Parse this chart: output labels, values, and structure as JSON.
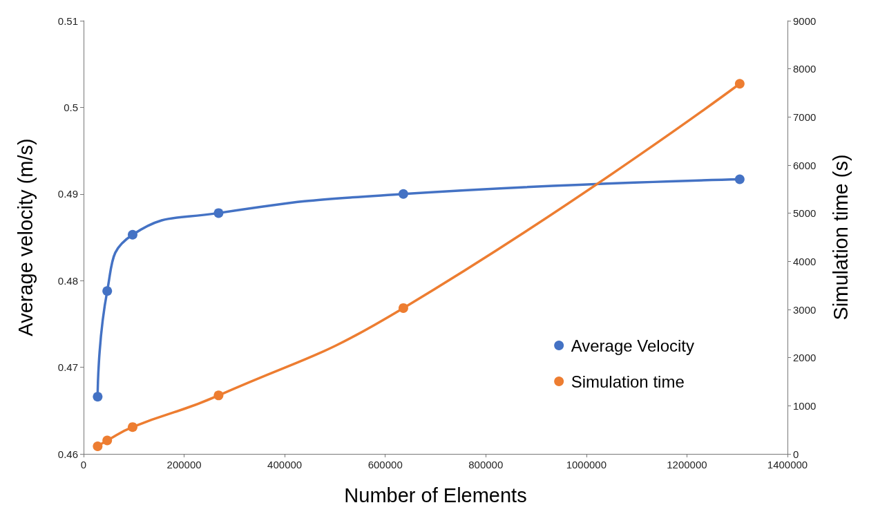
{
  "chart_data": {
    "type": "line",
    "xlabel": "Number of Elements",
    "ylabel": "Average velocity (m/s)",
    "y2label": "Simulation time (s)",
    "x": [
      28000,
      47000,
      97500,
      268500,
      636000,
      1305000
    ],
    "series": [
      {
        "name": "Average Velocity",
        "color": "#4472c4",
        "values": [
          0.4666,
          0.4788,
          0.4853,
          0.4878,
          0.49,
          0.4917
        ]
      },
      {
        "name": "Simulation time",
        "color": "#ed7d31",
        "axis": "y2",
        "values": [
          158,
          280,
          558,
          1215,
          3030,
          7690
        ]
      }
    ],
    "xlim": [
      0,
      1400000
    ],
    "xticks": [
      0,
      200000,
      400000,
      600000,
      800000,
      1000000,
      1200000,
      1400000
    ],
    "ylim": [
      0.46,
      0.51
    ],
    "yticks": [
      0.46,
      0.47,
      0.48,
      0.49,
      0.5,
      0.51
    ],
    "y2lim": [
      0,
      9000
    ],
    "y2ticks": [
      0,
      1000,
      2000,
      3000,
      4000,
      5000,
      6000,
      7000,
      8000,
      9000
    ],
    "grid": false,
    "legend": "right",
    "marker": "circle",
    "line_style": "solid"
  }
}
